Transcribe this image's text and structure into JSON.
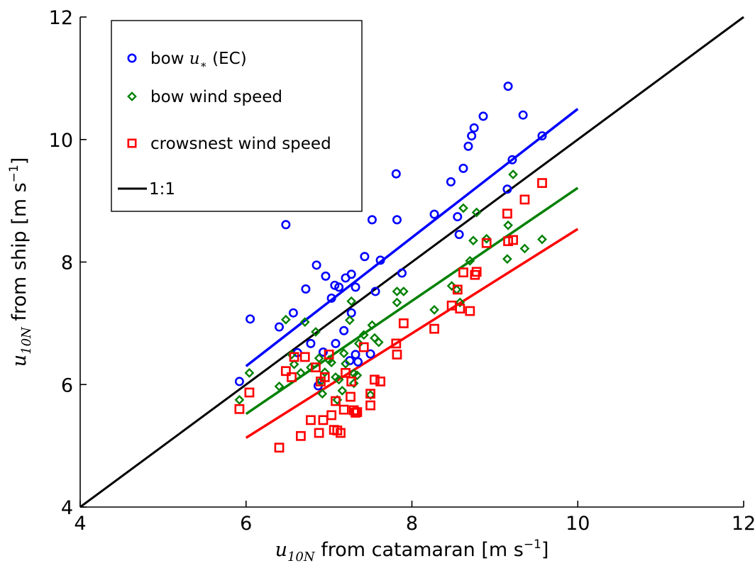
{
  "chart_data": {
    "type": "scatter",
    "title": "",
    "xlabel": {
      "math": "u",
      "sub": "10N",
      "text": " from catamaran [m s",
      "sup": "−1",
      "end": "]"
    },
    "ylabel": {
      "math": "u",
      "sub": "10N",
      "text": " from ship [m s",
      "sup": "−1",
      "end": "]"
    },
    "xlim": [
      4,
      12
    ],
    "ylim": [
      4,
      12
    ],
    "xticks": [
      4,
      6,
      8,
      10,
      12
    ],
    "yticks": [
      4,
      6,
      8,
      10,
      12
    ],
    "grid": false,
    "legend_position": "top-left",
    "series": [
      {
        "name": "bow u* (EC)",
        "legend": {
          "text": "bow ",
          "math": "u",
          "sub": "∗",
          "end": " (EC)"
        },
        "marker": "circle",
        "color": "#0000ff",
        "points": [
          [
            5.92,
            6.05
          ],
          [
            6.05,
            7.07
          ],
          [
            6.4,
            6.94
          ],
          [
            6.48,
            8.61
          ],
          [
            6.57,
            7.17
          ],
          [
            6.62,
            6.52
          ],
          [
            6.72,
            7.56
          ],
          [
            6.78,
            6.67
          ],
          [
            6.85,
            7.95
          ],
          [
            6.87,
            5.98
          ],
          [
            6.93,
            6.53
          ],
          [
            6.96,
            7.77
          ],
          [
            7.03,
            7.41
          ],
          [
            7.07,
            7.62
          ],
          [
            7.08,
            6.67
          ],
          [
            7.12,
            7.59
          ],
          [
            7.18,
            6.88
          ],
          [
            7.2,
            7.74
          ],
          [
            7.25,
            6.39
          ],
          [
            7.27,
            7.8
          ],
          [
            7.27,
            7.17
          ],
          [
            7.32,
            6.49
          ],
          [
            7.32,
            7.59
          ],
          [
            7.35,
            6.37
          ],
          [
            7.43,
            8.09
          ],
          [
            7.5,
            6.5
          ],
          [
            7.52,
            8.69
          ],
          [
            7.56,
            7.52
          ],
          [
            7.62,
            8.03
          ],
          [
            7.81,
            9.44
          ],
          [
            7.82,
            8.69
          ],
          [
            7.88,
            7.82
          ],
          [
            8.27,
            8.78
          ],
          [
            8.47,
            9.31
          ],
          [
            8.55,
            8.74
          ],
          [
            8.57,
            8.45
          ],
          [
            8.62,
            9.53
          ],
          [
            8.68,
            9.89
          ],
          [
            8.72,
            10.06
          ],
          [
            8.75,
            10.19
          ],
          [
            8.86,
            10.38
          ],
          [
            9.15,
            9.19
          ],
          [
            9.16,
            10.87
          ],
          [
            9.21,
            9.67
          ],
          [
            9.34,
            10.4
          ],
          [
            9.57,
            10.06
          ]
        ],
        "fit": {
          "x": [
            6.0,
            10.0
          ],
          "y": [
            6.3,
            10.5
          ]
        }
      },
      {
        "name": "bow wind speed",
        "marker": "diamond",
        "color": "#008000",
        "points": [
          [
            5.92,
            5.75
          ],
          [
            6.04,
            6.19
          ],
          [
            6.4,
            5.97
          ],
          [
            6.48,
            7.06
          ],
          [
            6.55,
            6.49
          ],
          [
            6.58,
            6.33
          ],
          [
            6.66,
            6.19
          ],
          [
            6.71,
            7.02
          ],
          [
            6.78,
            6.28
          ],
          [
            6.84,
            6.86
          ],
          [
            6.88,
            6.43
          ],
          [
            6.9,
            6.05
          ],
          [
            6.92,
            5.85
          ],
          [
            6.95,
            6.2
          ],
          [
            7.0,
            6.4
          ],
          [
            7.03,
            6.36
          ],
          [
            7.08,
            6.12
          ],
          [
            7.1,
            5.75
          ],
          [
            7.12,
            6.08
          ],
          [
            7.16,
            5.9
          ],
          [
            7.18,
            6.51
          ],
          [
            7.2,
            6.34
          ],
          [
            7.25,
            7.05
          ],
          [
            7.27,
            7.36
          ],
          [
            7.3,
            6.02
          ],
          [
            7.3,
            6.18
          ],
          [
            7.34,
            6.15
          ],
          [
            7.36,
            6.67
          ],
          [
            7.42,
            6.81
          ],
          [
            7.5,
            5.83
          ],
          [
            7.52,
            6.97
          ],
          [
            7.55,
            6.76
          ],
          [
            7.6,
            6.69
          ],
          [
            7.82,
            7.34
          ],
          [
            7.82,
            7.52
          ],
          [
            7.9,
            7.52
          ],
          [
            8.27,
            7.22
          ],
          [
            8.48,
            7.61
          ],
          [
            8.54,
            7.55
          ],
          [
            8.58,
            7.34
          ],
          [
            8.62,
            8.88
          ],
          [
            8.7,
            8.02
          ],
          [
            8.74,
            8.35
          ],
          [
            8.78,
            8.81
          ],
          [
            8.9,
            8.38
          ],
          [
            9.15,
            8.05
          ],
          [
            9.16,
            8.6
          ],
          [
            9.22,
            9.43
          ],
          [
            9.36,
            8.22
          ],
          [
            9.57,
            8.37
          ]
        ],
        "fit": {
          "x": [
            6.0,
            10.0
          ],
          "y": [
            5.52,
            9.21
          ]
        }
      },
      {
        "name": "crowsnest wind speed",
        "marker": "square",
        "color": "#ff0000",
        "points": [
          [
            5.92,
            5.6
          ],
          [
            6.04,
            5.87
          ],
          [
            6.4,
            4.97
          ],
          [
            6.48,
            6.22
          ],
          [
            6.55,
            6.12
          ],
          [
            6.58,
            6.45
          ],
          [
            6.66,
            5.16
          ],
          [
            6.71,
            6.45
          ],
          [
            6.78,
            5.42
          ],
          [
            6.84,
            6.28
          ],
          [
            6.88,
            5.21
          ],
          [
            6.9,
            6.05
          ],
          [
            6.93,
            5.42
          ],
          [
            6.95,
            6.12
          ],
          [
            7.0,
            6.49
          ],
          [
            7.03,
            5.5
          ],
          [
            7.06,
            5.26
          ],
          [
            7.08,
            5.73
          ],
          [
            7.1,
            5.25
          ],
          [
            7.14,
            5.21
          ],
          [
            7.2,
            6.19
          ],
          [
            7.18,
            5.59
          ],
          [
            7.26,
            5.8
          ],
          [
            7.27,
            6.05
          ],
          [
            7.3,
            5.58
          ],
          [
            7.32,
            5.54
          ],
          [
            7.34,
            5.55
          ],
          [
            7.42,
            6.61
          ],
          [
            7.5,
            5.66
          ],
          [
            7.5,
            5.85
          ],
          [
            7.55,
            6.08
          ],
          [
            7.62,
            6.05
          ],
          [
            7.81,
            6.67
          ],
          [
            7.82,
            6.49
          ],
          [
            7.9,
            7.0
          ],
          [
            8.27,
            6.91
          ],
          [
            8.48,
            7.29
          ],
          [
            8.55,
            7.55
          ],
          [
            8.58,
            7.24
          ],
          [
            8.62,
            7.83
          ],
          [
            8.7,
            7.2
          ],
          [
            8.76,
            7.79
          ],
          [
            8.78,
            7.84
          ],
          [
            8.9,
            8.31
          ],
          [
            9.15,
            8.79
          ],
          [
            9.16,
            8.34
          ],
          [
            9.22,
            8.36
          ],
          [
            9.36,
            9.02
          ],
          [
            9.57,
            9.29
          ]
        ],
        "fit": {
          "x": [
            6.0,
            10.0
          ],
          "y": [
            5.13,
            8.54
          ]
        }
      }
    ],
    "reference_line": {
      "name": "1:1",
      "color": "#000000",
      "x": [
        4,
        12
      ],
      "y": [
        4,
        12
      ]
    }
  }
}
